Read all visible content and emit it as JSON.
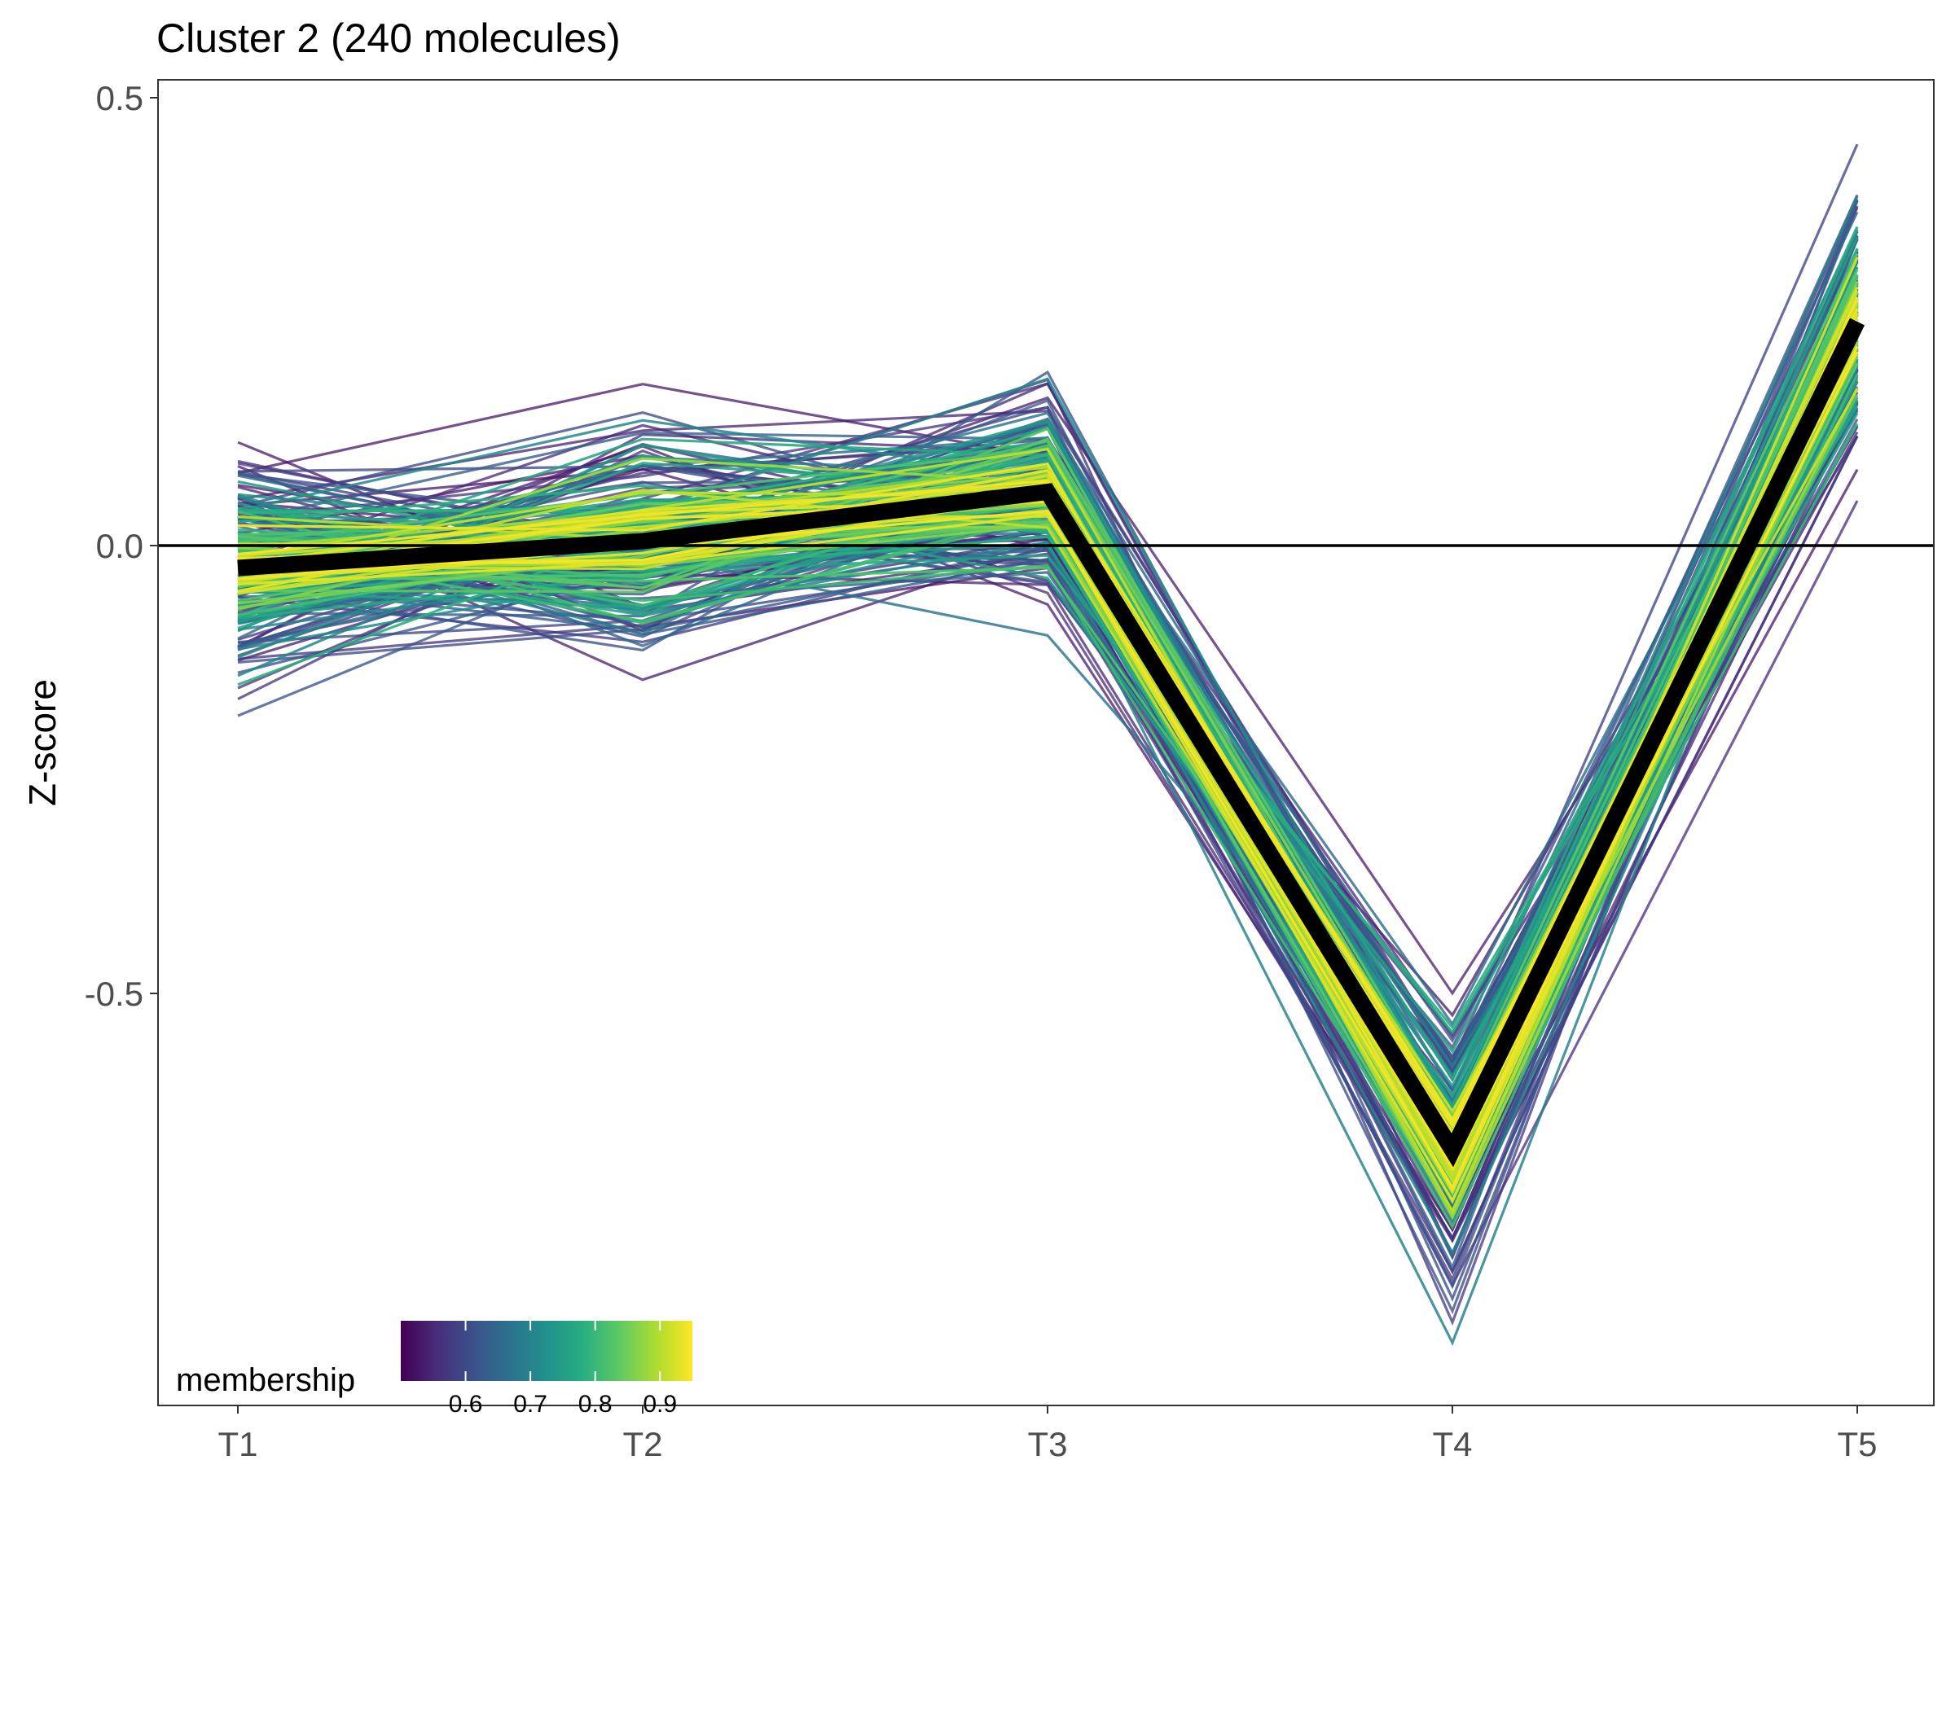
{
  "chart_data": {
    "type": "line",
    "title": "Cluster 2 (240 molecules)",
    "xlabel": "",
    "ylabel": "Z-score",
    "categories": [
      "T1",
      "T2",
      "T3",
      "T4",
      "T5"
    ],
    "ylim": [
      -0.96,
      0.52
    ],
    "yticks": [
      0.5,
      0.0,
      -0.5
    ],
    "ytick_labels": [
      "0.5",
      "0.0",
      "-0.5"
    ],
    "n_lines": 240,
    "centroid": {
      "values": [
        -0.025,
        0.005,
        0.06,
        -0.675,
        0.25
      ],
      "color": "#000000"
    },
    "spread": {
      "member_sd": [
        0.065,
        0.07,
        0.06,
        0.08,
        0.08
      ],
      "member_range_low": [
        -0.19,
        -0.17,
        -0.11,
        -0.89,
        0.05
      ],
      "member_range_high": [
        0.13,
        0.21,
        0.25,
        -0.48,
        0.45
      ]
    },
    "hline": 0.0,
    "legend": {
      "title": "membership",
      "range": [
        0.5,
        0.95
      ],
      "ticks": [
        0.6,
        0.7,
        0.8,
        0.9
      ],
      "tick_labels": [
        "0.6",
        "0.7",
        "0.8",
        "0.9"
      ],
      "colors": [
        "#440154",
        "#472d7b",
        "#3b528b",
        "#2c728e",
        "#21918c",
        "#28ae80",
        "#5ec962",
        "#addc30",
        "#fde725"
      ],
      "position": "bottom-left"
    },
    "grid": false
  }
}
